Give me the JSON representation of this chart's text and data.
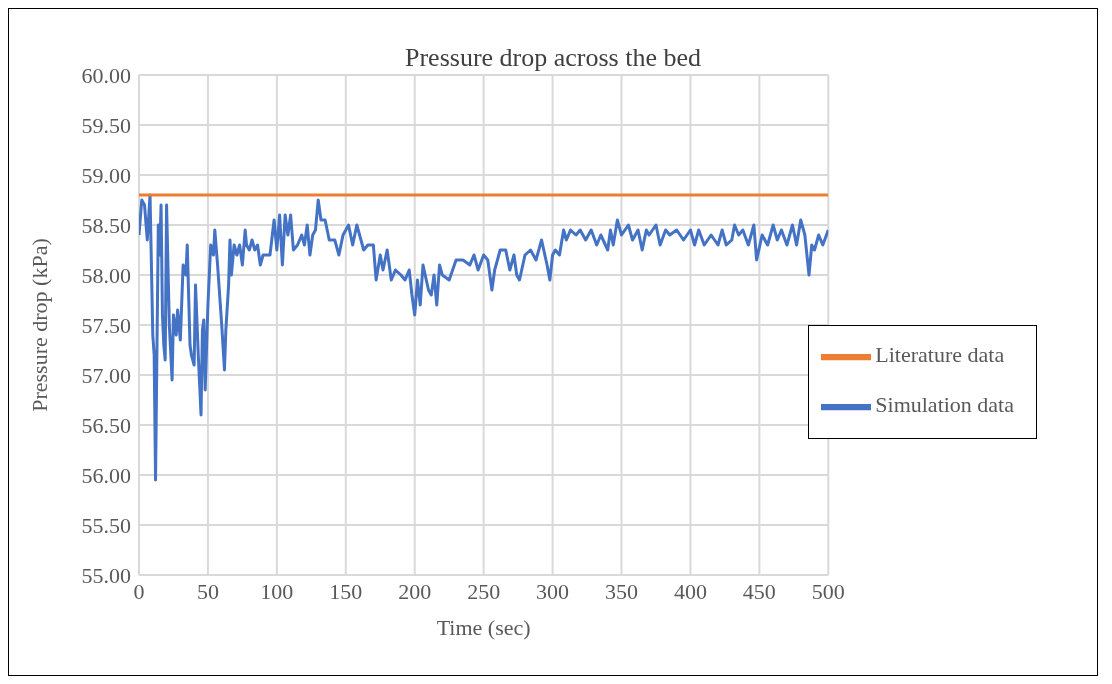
{
  "chart_data": {
    "type": "line",
    "title": "Pressure drop across the bed",
    "xlabel": "Time (sec)",
    "ylabel": "Pressure drop (kPa)",
    "xlim": [
      0,
      500
    ],
    "xticks": [
      0,
      50,
      100,
      150,
      200,
      250,
      300,
      350,
      400,
      450,
      500
    ],
    "ylim": [
      55,
      60
    ],
    "yticks": [
      {
        "value": 55,
        "label": "55.00"
      },
      {
        "value": 55.5,
        "label": "55.50"
      },
      {
        "value": 56,
        "label": "56.00"
      },
      {
        "value": 56.5,
        "label": "56.50"
      },
      {
        "value": 57,
        "label": "57.00"
      },
      {
        "value": 57.5,
        "label": "57.50"
      },
      {
        "value": 58,
        "label": "58.00"
      },
      {
        "value": 58.5,
        "label": "58.50"
      },
      {
        "value": 59,
        "label": "59.00"
      },
      {
        "value": 59.5,
        "label": "59.50"
      },
      {
        "value": 60,
        "label": "60.00"
      }
    ],
    "grid": true,
    "legend": "right",
    "marker": "none",
    "line_style": "solid",
    "series": [
      {
        "name": "Simulation data",
        "color": "#4472c4",
        "x": [
          0,
          2,
          4,
          6,
          8,
          10,
          11,
          12,
          14,
          15,
          16,
          17,
          18,
          19,
          20,
          22,
          24,
          25,
          27,
          28,
          30,
          32,
          34,
          35,
          37,
          38,
          40,
          41,
          43,
          45,
          46,
          47,
          48,
          50,
          52,
          54,
          55,
          57,
          60,
          62,
          63,
          65,
          66,
          67,
          69,
          71,
          73,
          75,
          77,
          78,
          80,
          82,
          84,
          86,
          88,
          90,
          95,
          98,
          100,
          102,
          104,
          106,
          108,
          110,
          112,
          115,
          118,
          120,
          122,
          124,
          126,
          128,
          130,
          132,
          135,
          138,
          142,
          145,
          148,
          152,
          155,
          158,
          160,
          163,
          166,
          170,
          172,
          175,
          177,
          180,
          183,
          186,
          190,
          193,
          196,
          198,
          200,
          202,
          204,
          206,
          210,
          212,
          214,
          216,
          218,
          220,
          225,
          230,
          235,
          240,
          243,
          246,
          250,
          253,
          256,
          258,
          262,
          266,
          269,
          272,
          274,
          276,
          280,
          284,
          288,
          292,
          296,
          298,
          300,
          302,
          305,
          308,
          310,
          313,
          317,
          320,
          324,
          328,
          332,
          335,
          340,
          342,
          344,
          347,
          350,
          355,
          358,
          362,
          365,
          368,
          370,
          375,
          378,
          382,
          385,
          390,
          395,
          400,
          403,
          406,
          410,
          415,
          420,
          423,
          426,
          430,
          432,
          435,
          438,
          442,
          446,
          448,
          452,
          456,
          460,
          463,
          466,
          470,
          474,
          477,
          480,
          483,
          486,
          488,
          490,
          493,
          496,
          500
        ],
        "values": [
          58.4,
          58.75,
          58.7,
          58.35,
          58.8,
          57.4,
          57.2,
          55.95,
          58.5,
          58.2,
          58.7,
          57.6,
          57.3,
          57.15,
          58.7,
          57.5,
          56.95,
          57.6,
          57.4,
          57.65,
          57.35,
          58.1,
          58.0,
          58.3,
          57.3,
          57.2,
          57.1,
          57.9,
          57.2,
          56.6,
          57.45,
          57.55,
          56.85,
          57.7,
          58.3,
          58.2,
          58.45,
          58.1,
          57.5,
          57.05,
          57.45,
          57.9,
          58.35,
          58.0,
          58.3,
          58.2,
          58.3,
          58.1,
          58.45,
          58.3,
          58.25,
          58.35,
          58.25,
          58.3,
          58.1,
          58.2,
          58.2,
          58.55,
          58.25,
          58.6,
          58.1,
          58.6,
          58.4,
          58.6,
          58.25,
          58.3,
          58.4,
          58.3,
          58.5,
          58.2,
          58.4,
          58.45,
          58.75,
          58.55,
          58.55,
          58.35,
          58.35,
          58.2,
          58.4,
          58.5,
          58.3,
          58.5,
          58.4,
          58.25,
          58.3,
          58.3,
          57.95,
          58.2,
          58.05,
          58.25,
          57.95,
          58.05,
          58.0,
          57.95,
          58.05,
          57.8,
          57.6,
          57.95,
          57.7,
          58.1,
          57.85,
          57.8,
          58.0,
          57.7,
          58.1,
          58.0,
          57.95,
          58.15,
          58.15,
          58.1,
          58.2,
          58.05,
          58.2,
          58.15,
          57.85,
          58.05,
          58.25,
          58.25,
          58.05,
          58.2,
          58.0,
          57.95,
          58.2,
          58.25,
          58.15,
          58.35,
          58.1,
          57.95,
          58.2,
          58.25,
          58.2,
          58.45,
          58.35,
          58.45,
          58.4,
          58.45,
          58.35,
          58.45,
          58.3,
          58.4,
          58.25,
          58.45,
          58.3,
          58.55,
          58.4,
          58.5,
          58.35,
          58.45,
          58.25,
          58.45,
          58.4,
          58.5,
          58.3,
          58.45,
          58.4,
          58.45,
          58.35,
          58.45,
          58.3,
          58.45,
          58.3,
          58.4,
          58.3,
          58.45,
          58.3,
          58.35,
          58.5,
          58.4,
          58.45,
          58.3,
          58.5,
          58.15,
          58.4,
          58.3,
          58.5,
          58.35,
          58.45,
          58.3,
          58.5,
          58.3,
          58.55,
          58.4,
          58.0,
          58.3,
          58.25,
          58.4,
          58.3,
          58.45
        ]
      },
      {
        "name": "Literature data",
        "color": "#ed7d31",
        "x": [
          0,
          500
        ],
        "values": [
          58.8,
          58.8
        ]
      }
    ]
  }
}
